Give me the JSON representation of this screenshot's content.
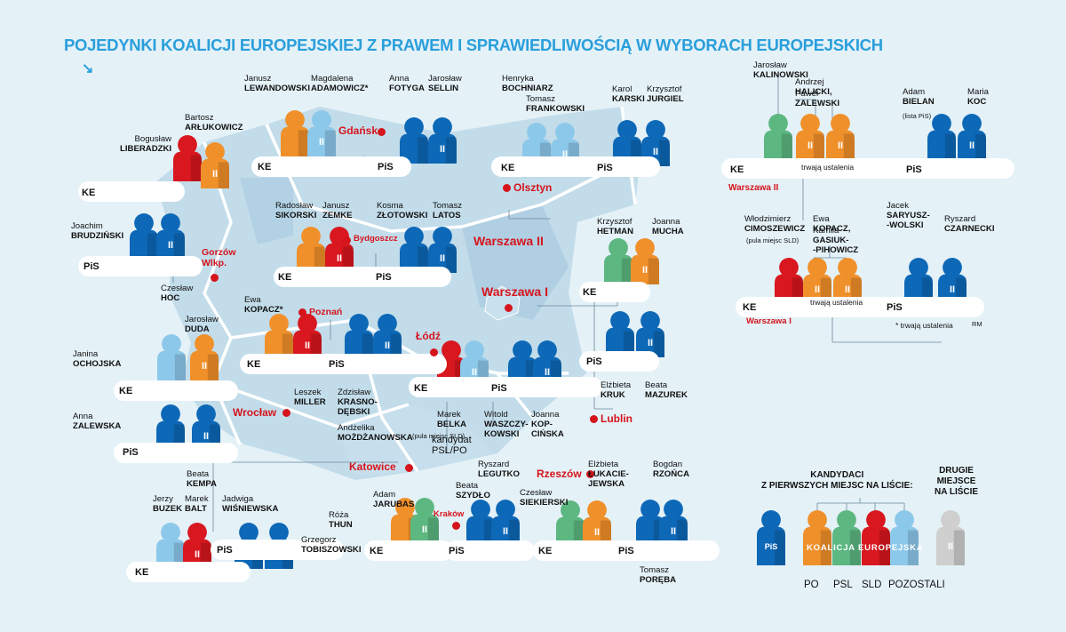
{
  "title": "POJEDYNKI KOALICJI EUROPEJSKIEJ Z PRAWEM I SPRAWIEDLIWOŚCIĄ W WYBORACH EUROPEJSKICH",
  "arrow_glyph": "↘",
  "colors": {
    "PiS": "#0d68b7",
    "PO": "#f0902a",
    "PSL": "#5cb780",
    "SLD": "#d8171f",
    "Pozostali": "#8cc8ea",
    "Other": "#cfcfcf",
    "background": "#e4f1f7",
    "map": "#b7d4e6",
    "accent": "#d6141c",
    "title": "#2a9fdc"
  },
  "labels": {
    "ke": "KE",
    "pis": "PiS",
    "second": "II"
  },
  "cities": [
    {
      "id": "gdansk",
      "name": "Gdańsk"
    },
    {
      "id": "olsztyn",
      "name": "Olsztyn"
    },
    {
      "id": "bydgoszcz",
      "name": "Bydgoszcz"
    },
    {
      "id": "gorzow",
      "name": "Gorzów\nWlkp."
    },
    {
      "id": "poznan",
      "name": "Poznań"
    },
    {
      "id": "warszawa2",
      "name": "Warszawa II"
    },
    {
      "id": "warszawa1",
      "name": "Warszawa I"
    },
    {
      "id": "lodz",
      "name": "Łódź"
    },
    {
      "id": "lublin",
      "name": "Lublin"
    },
    {
      "id": "wroclaw",
      "name": "Wrocław"
    },
    {
      "id": "katowice",
      "name": "Katowice"
    },
    {
      "id": "krakow",
      "name": "Kraków"
    },
    {
      "id": "rzeszow",
      "name": "Rzeszów"
    },
    {
      "id": "warszawa2_side",
      "name": "Warszawa II"
    },
    {
      "id": "warszawa1_side",
      "name": "Warszawa I"
    }
  ],
  "candidates": [
    {
      "first": "Bogusław",
      "last": "LIBERADZKI"
    },
    {
      "first": "Bartosz",
      "last": "ARŁUKOWICZ"
    },
    {
      "first": "Joachim",
      "last": "BRUDZIŃSKI"
    },
    {
      "first": "Czesław",
      "last": "HOC"
    },
    {
      "first": "Janusz",
      "last": "LEWANDOWSKI"
    },
    {
      "first": "Magdalena",
      "last": "ADAMOWICZ*"
    },
    {
      "first": "Anna",
      "last": "FOTYGA"
    },
    {
      "first": "Jarosław",
      "last": "SELLIN"
    },
    {
      "first": "Henryka",
      "last": "BOCHNIARZ"
    },
    {
      "first": "Tomasz",
      "last": "FRANKOWSKI"
    },
    {
      "first": "Karol",
      "last": "KARSKI"
    },
    {
      "first": "Krzysztof",
      "last": "JURGIEL"
    },
    {
      "first": "Radosław",
      "last": "SIKORSKI"
    },
    {
      "first": "Janusz",
      "last": "ZEMKE"
    },
    {
      "first": "Kosma",
      "last": "ZŁOTOWSKI"
    },
    {
      "first": "Tomasz",
      "last": "LATOS"
    },
    {
      "first": "Ewa",
      "last": "KOPACZ*"
    },
    {
      "first": "Leszek",
      "last": "MILLER"
    },
    {
      "first": "Zdzisław",
      "last": "KRASNO-\nDĘBSKI"
    },
    {
      "first": "Andżelika",
      "last": "MOŻDŻANOWSKA"
    },
    {
      "first": "Jarosław",
      "last": "DUDA"
    },
    {
      "first": "Janina",
      "last": "OCHOJSKA"
    },
    {
      "first": "Anna",
      "last": "ZALEWSKA"
    },
    {
      "first": "Beata",
      "last": "KEMPA"
    },
    {
      "first": "Marek",
      "last": "BELKA"
    },
    {
      "first": "Witold",
      "last": "WASZCZY-\nKOWSKI"
    },
    {
      "first": "Joanna",
      "last": "KOP-\nCIŃSKA"
    },
    {
      "first": "Krzysztof",
      "last": "HETMAN"
    },
    {
      "first": "Joanna",
      "last": "MUCHA"
    },
    {
      "first": "Elżbieta",
      "last": "KRUK"
    },
    {
      "first": "Beata",
      "last": "MAZUREK"
    },
    {
      "first": "Jarosław",
      "last": "KALINOWSKI"
    },
    {
      "first": "Andrzej",
      "last": "HALICKI,"
    },
    {
      "first": "Paweł",
      "last": "ZALEWSKI"
    },
    {
      "first": "Adam",
      "last": "BIELAN"
    },
    {
      "first": "Maria",
      "last": "KOC"
    },
    {
      "first": "Włodzimierz",
      "last": "CIMOSZEWICZ"
    },
    {
      "first": "Ewa",
      "last": "KOPACZ,"
    },
    {
      "first": "Kamila",
      "last": "GASIUK-\n-PIHOWICZ"
    },
    {
      "first": "Jacek",
      "last": "SARYUSZ-\n-WOLSKI"
    },
    {
      "first": "Ryszard",
      "last": "CZARNECKI"
    },
    {
      "first": "Jerzy",
      "last": "BUZEK"
    },
    {
      "first": "Marek",
      "last": "BALT"
    },
    {
      "first": "Jadwiga",
      "last": "WIŚNIEWSKA"
    },
    {
      "first": "Grzegorz",
      "last": "TOBISZOWSKI"
    },
    {
      "first": "Adam",
      "last": "JARUBAS"
    },
    {
      "first": "Róża",
      "last": "THUN"
    },
    {
      "first": "Beata",
      "last": "SZYDŁO"
    },
    {
      "first": "Ryszard",
      "last": "LEGUTKO"
    },
    {
      "first": "Czesław",
      "last": "SIEKIERSKI"
    },
    {
      "first": "Elżbieta",
      "last": "ŁUKACIE-\nJEWSKA"
    },
    {
      "first": "Bogdan",
      "last": "RZOŃCA"
    },
    {
      "first": "Tomasz",
      "last": "PORĘBA"
    }
  ],
  "notes": {
    "pula_sld": "(pula miejsc SLD)",
    "lista_pis": "(lista PiS)",
    "trwaja": "trwają ustalenia",
    "trwaja_star": "* trwają ustalenia",
    "kandydat": "kandydat\nPSL/PO",
    "rm": "RM"
  },
  "legend": {
    "title": "KANDYDACI\nZ PIERWSZYCH MIEJSC NA LIŚCIE:",
    "second_title": "DRUGIE\nMIEJSCE\nNA LIŚCIE",
    "band": "KOALICJA EUROPEJSKA",
    "items": [
      "PO",
      "PSL",
      "SLD",
      "POZOSTALI"
    ]
  }
}
